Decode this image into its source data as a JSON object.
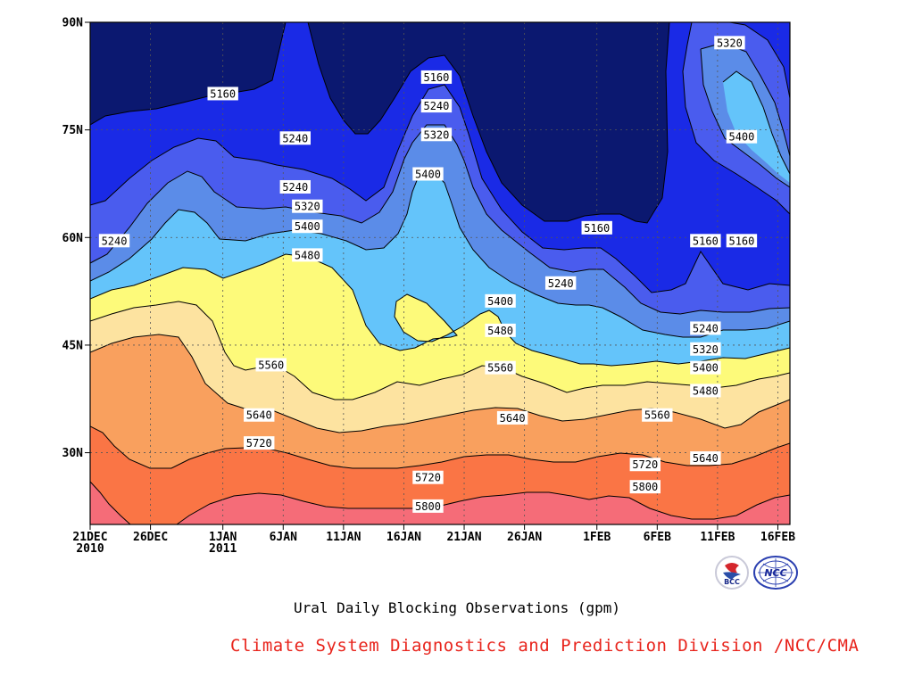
{
  "chart_data": {
    "type": "contour",
    "title": "Ural Daily Blocking Observations (gpm)",
    "x_ticks": [
      {
        "line1": "21DEC",
        "line2": "2010",
        "day": 0
      },
      {
        "line1": "26DEC",
        "line2": "",
        "day": 5
      },
      {
        "line1": "1JAN",
        "line2": "2011",
        "day": 11
      },
      {
        "line1": "6JAN",
        "line2": "",
        "day": 16
      },
      {
        "line1": "11JAN",
        "line2": "",
        "day": 21
      },
      {
        "line1": "16JAN",
        "line2": "",
        "day": 26
      },
      {
        "line1": "21JAN",
        "line2": "",
        "day": 31
      },
      {
        "line1": "26JAN",
        "line2": "",
        "day": 36
      },
      {
        "line1": "1FEB",
        "line2": "",
        "day": 42
      },
      {
        "line1": "6FEB",
        "line2": "",
        "day": 47
      },
      {
        "line1": "11FEB",
        "line2": "",
        "day": 52
      },
      {
        "line1": "16FEB",
        "line2": "",
        "day": 57
      }
    ],
    "x_range": [
      0,
      58
    ],
    "y_ticks": [
      {
        "label": "90N",
        "lat": 90
      },
      {
        "label": "75N",
        "lat": 75
      },
      {
        "label": "60N",
        "lat": 60
      },
      {
        "label": "45N",
        "lat": 45
      },
      {
        "label": "30N",
        "lat": 30
      }
    ],
    "y_range": [
      20,
      90
    ],
    "contour_levels": [
      5160,
      5240,
      5320,
      5400,
      5480,
      5560,
      5640,
      5720,
      5800
    ],
    "fill_colors": [
      "#0b1870",
      "#1a2ae6",
      "#4a5cee",
      "#5b8ce8",
      "#64c4fa",
      "#fdfa7a",
      "#fde3a0",
      "#f9a05e",
      "#fa7545",
      "#f56c78"
    ],
    "contour_labels": [
      {
        "text": "5160",
        "day": 11.0,
        "lat": 80.0
      },
      {
        "text": "5160",
        "day": 28.7,
        "lat": 82.3
      },
      {
        "text": "5160",
        "day": 42.0,
        "lat": 61.3
      },
      {
        "text": "5160",
        "day": 51.0,
        "lat": 59.5
      },
      {
        "text": "5160",
        "day": 54.0,
        "lat": 59.5
      },
      {
        "text": "5240",
        "day": 2.0,
        "lat": 59.5
      },
      {
        "text": "5240",
        "day": 17.0,
        "lat": 73.8
      },
      {
        "text": "5240",
        "day": 28.7,
        "lat": 78.3
      },
      {
        "text": "5240",
        "day": 17.0,
        "lat": 67.0
      },
      {
        "text": "5240",
        "day": 39.0,
        "lat": 53.6
      },
      {
        "text": "5240",
        "day": 51.0,
        "lat": 47.3
      },
      {
        "text": "5320",
        "day": 53.0,
        "lat": 87.1
      },
      {
        "text": "5320",
        "day": 18.0,
        "lat": 64.3
      },
      {
        "text": "5320",
        "day": 28.7,
        "lat": 74.3
      },
      {
        "text": "5320",
        "day": 51.0,
        "lat": 44.4
      },
      {
        "text": "5400",
        "day": 54.0,
        "lat": 74.0
      },
      {
        "text": "5400",
        "day": 28.0,
        "lat": 68.8
      },
      {
        "text": "5400",
        "day": 18.0,
        "lat": 61.5
      },
      {
        "text": "5400",
        "day": 34.0,
        "lat": 51.1
      },
      {
        "text": "5400",
        "day": 51.0,
        "lat": 41.8
      },
      {
        "text": "5480",
        "day": 18.0,
        "lat": 57.5
      },
      {
        "text": "5480",
        "day": 34.0,
        "lat": 47.0
      },
      {
        "text": "5480",
        "day": 51.0,
        "lat": 38.6
      },
      {
        "text": "5560",
        "day": 15.0,
        "lat": 42.2
      },
      {
        "text": "5560",
        "day": 34.0,
        "lat": 41.8
      },
      {
        "text": "5560",
        "day": 47.0,
        "lat": 35.2
      },
      {
        "text": "5640",
        "day": 14.0,
        "lat": 35.2
      },
      {
        "text": "5640",
        "day": 35.0,
        "lat": 34.8
      },
      {
        "text": "5640",
        "day": 51.0,
        "lat": 29.2
      },
      {
        "text": "5720",
        "day": 14.0,
        "lat": 31.3
      },
      {
        "text": "5720",
        "day": 28.0,
        "lat": 26.5
      },
      {
        "text": "5720",
        "day": 46.0,
        "lat": 28.3
      },
      {
        "text": "5800",
        "day": 28.0,
        "lat": 22.5
      },
      {
        "text": "5800",
        "day": 46.0,
        "lat": 25.2
      }
    ]
  },
  "footer": {
    "credit": "Climate System Diagnostics and Prediction Division /NCC/CMA",
    "logo_left_text": "BCC",
    "logo_right_text": "NCC"
  }
}
